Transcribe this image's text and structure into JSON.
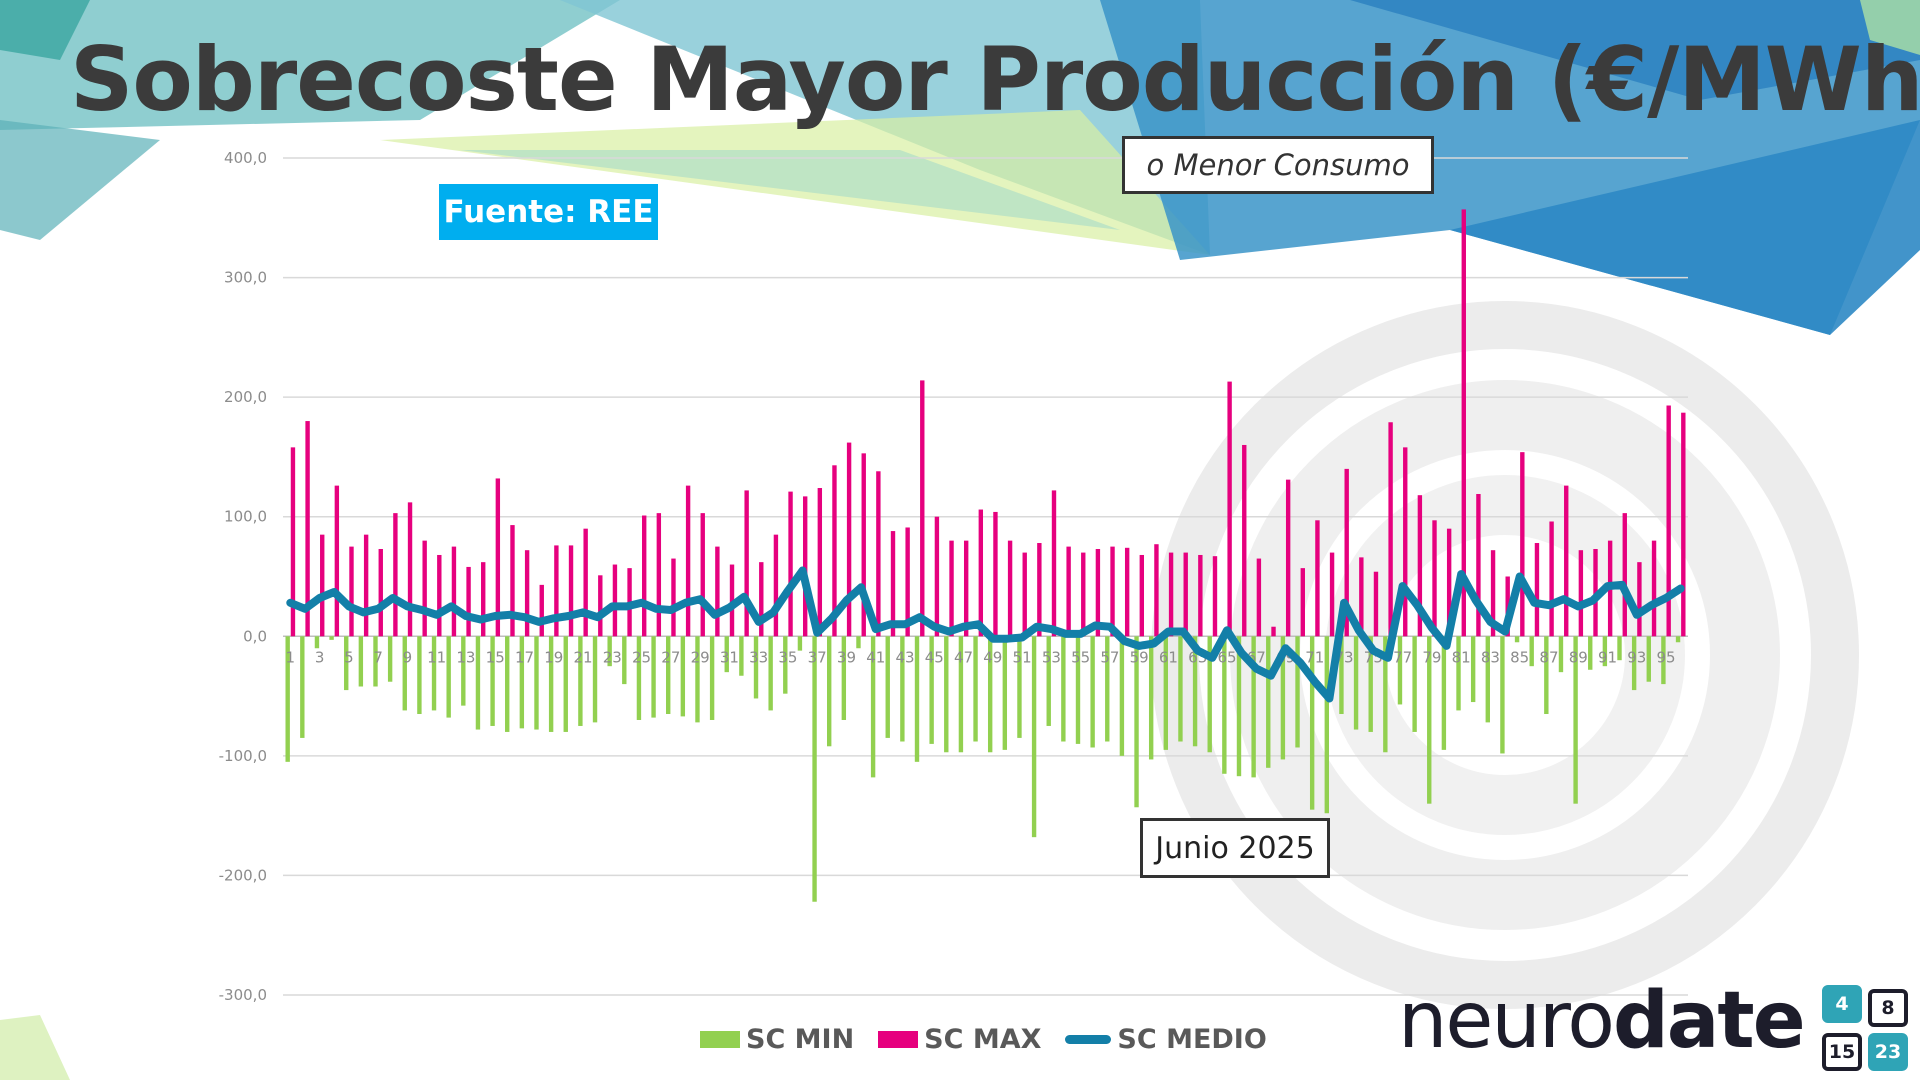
{
  "slide": {
    "title": "Sobrecoste Mayor Producción (€/MWh)",
    "source_label": "Fuente: REE",
    "subtitle": "o Menor Consumo",
    "period_label": "Junio 2025",
    "brand_light": "neuro",
    "brand_bold": "date",
    "calendar_icon": {
      "numbers": [
        "4",
        "8",
        "15",
        "23"
      ]
    },
    "colors": {
      "sc_min": "#92d050",
      "sc_max": "#e6007e",
      "sc_medio": "#137fa8",
      "source_box": "#00aeef",
      "title": "#3b3b3b",
      "accent_teal": "#2fa4b6"
    }
  },
  "chart_data": {
    "type": "bar",
    "x": [
      1,
      2,
      3,
      4,
      5,
      6,
      7,
      8,
      9,
      10,
      11,
      12,
      13,
      14,
      15,
      16,
      17,
      18,
      19,
      20,
      21,
      22,
      23,
      24,
      25,
      26,
      27,
      28,
      29,
      30,
      31,
      32,
      33,
      34,
      35,
      36,
      37,
      38,
      39,
      40,
      41,
      42,
      43,
      44,
      45,
      46,
      47,
      48,
      49,
      50,
      51,
      52,
      53,
      54,
      55,
      56,
      57,
      58,
      59,
      60,
      61,
      62,
      63,
      64,
      65,
      66,
      67,
      68,
      69,
      70,
      71,
      72,
      73,
      74,
      75,
      76,
      77,
      78,
      79,
      80,
      81,
      82,
      83,
      84,
      85,
      86,
      87,
      88,
      89,
      90,
      91,
      92,
      93,
      94,
      95,
      96
    ],
    "x_tick_labels": [
      "1",
      "3",
      "5",
      "7",
      "9",
      "11",
      "13",
      "15",
      "17",
      "19",
      "21",
      "23",
      "25",
      "27",
      "29",
      "31",
      "33",
      "35",
      "37",
      "39",
      "41",
      "43",
      "45",
      "47",
      "49",
      "51",
      "53",
      "55",
      "57",
      "59",
      "61",
      "63",
      "65",
      "67",
      "69",
      "71",
      "73",
      "75",
      "77",
      "79",
      "81",
      "83",
      "85",
      "87",
      "89",
      "91",
      "93",
      "95"
    ],
    "y_tick_labels": [
      "400,0",
      "300,0",
      "200,0",
      "100,0",
      "0,0",
      "-100,0",
      "-200,0",
      "-300,0"
    ],
    "ylim": [
      -300,
      400
    ],
    "grid": true,
    "legend_position": "bottom",
    "series": [
      {
        "name": "SC MIN",
        "type": "bar",
        "values": [
          -105,
          -85,
          -10,
          -3,
          -45,
          -42,
          -42,
          -38,
          -62,
          -65,
          -62,
          -68,
          -58,
          -78,
          -75,
          -80,
          -77,
          -78,
          -80,
          -80,
          -75,
          -72,
          -25,
          -40,
          -70,
          -68,
          -65,
          -67,
          -72,
          -70,
          -30,
          -33,
          -52,
          -62,
          -48,
          -12,
          -222,
          -92,
          -70,
          -10,
          -118,
          -85,
          -88,
          -105,
          -90,
          -97,
          -97,
          -88,
          -97,
          -95,
          -85,
          -168,
          -75,
          -88,
          -90,
          -93,
          -88,
          -100,
          -143,
          -103,
          -95,
          -88,
          -92,
          -97,
          -115,
          -117,
          -118,
          -110,
          -103,
          -93,
          -145,
          -148,
          -65,
          -78,
          -80,
          -97,
          -57,
          -80,
          -140,
          -95,
          -62,
          -55,
          -72,
          -98,
          -5,
          -25,
          -65,
          -30,
          -140,
          -28,
          -25,
          -20,
          -45,
          -38,
          -40,
          -5
        ]
      },
      {
        "name": "SC MAX",
        "type": "bar",
        "values": [
          158,
          180,
          85,
          126,
          75,
          85,
          73,
          103,
          112,
          80,
          68,
          75,
          58,
          62,
          132,
          93,
          72,
          43,
          76,
          76,
          90,
          51,
          60,
          57,
          101,
          103,
          65,
          126,
          103,
          75,
          60,
          122,
          62,
          85,
          121,
          117,
          124,
          143,
          162,
          153,
          138,
          88,
          91,
          214,
          100,
          80,
          80,
          106,
          104,
          80,
          70,
          78,
          122,
          75,
          70,
          73,
          75,
          74,
          68,
          77,
          70,
          70,
          68,
          67,
          213,
          160,
          65,
          8,
          131,
          57,
          97,
          70,
          140,
          66,
          54,
          179,
          158,
          118,
          97,
          90,
          357,
          119,
          72,
          50,
          154,
          78,
          96,
          126,
          72,
          73,
          80,
          103,
          62,
          80,
          193,
          187
        ]
      },
      {
        "name": "SC MEDIO",
        "type": "line",
        "values": [
          28,
          23,
          32,
          37,
          25,
          20,
          23,
          32,
          25,
          22,
          18,
          25,
          17,
          14,
          17,
          18,
          16,
          12,
          15,
          17,
          20,
          16,
          25,
          25,
          28,
          23,
          22,
          28,
          31,
          18,
          24,
          33,
          12,
          20,
          38,
          55,
          3,
          15,
          30,
          41,
          6,
          10,
          10,
          16,
          8,
          4,
          8,
          10,
          -2,
          -2,
          -1,
          8,
          6,
          2,
          2,
          9,
          8,
          -4,
          -8,
          -6,
          4,
          4,
          -12,
          -18,
          5,
          -14,
          -27,
          -33,
          -10,
          -22,
          -38,
          -52,
          28,
          5,
          -12,
          -18,
          42,
          26,
          7,
          -8,
          52,
          30,
          12,
          4,
          50,
          28,
          26,
          31,
          25,
          30,
          42,
          43,
          18,
          26,
          32,
          40
        ]
      }
    ]
  }
}
